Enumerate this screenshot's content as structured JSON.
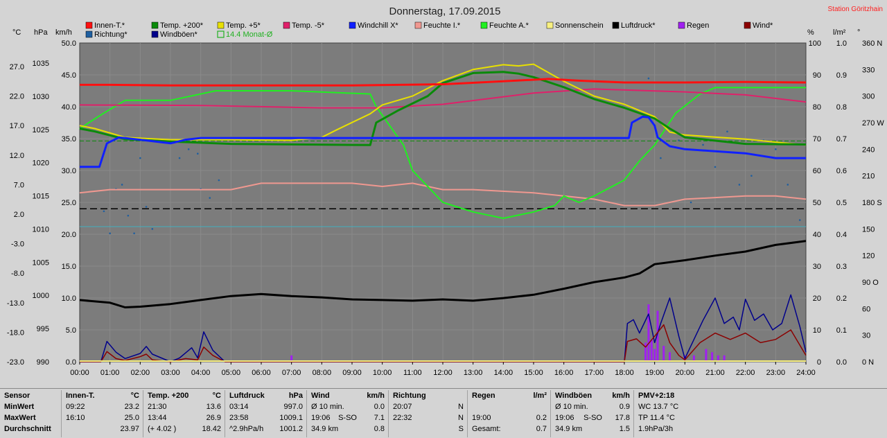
{
  "chart_data": {
    "type": "line",
    "title": "Donnerstag, 17.09.2015",
    "station": "Station Göritzhain",
    "axis_units": {
      "temp": "°C",
      "pressure": "hPa",
      "wind": "km/h",
      "humidity": "%",
      "rain": "l/m²",
      "direction": "°"
    },
    "x_ticks": [
      "00:00",
      "01:00",
      "02:00",
      "03:00",
      "04:00",
      "05:00",
      "06:00",
      "07:00",
      "08:00",
      "09:00",
      "10:00",
      "11:00",
      "12:00",
      "13:00",
      "14:00",
      "15:00",
      "16:00",
      "17:00",
      "18:00",
      "19:00",
      "20:00",
      "21:00",
      "22:00",
      "23:00",
      "24:00"
    ],
    "left_axes": {
      "temp": [
        "27.0",
        "22.0",
        "17.0",
        "12.0",
        "7.0",
        "2.0",
        "-3.0",
        "-8.0",
        "-13.0",
        "-18.0",
        "-23.0"
      ],
      "pressure": [
        "1035",
        "1030",
        "1025",
        "1020",
        "1015",
        "1010",
        "1005",
        "1000",
        "995",
        "990"
      ],
      "wind": [
        "50.0",
        "45.0",
        "40.0",
        "35.0",
        "30.0",
        "25.0",
        "20.0",
        "15.0",
        "10.0",
        "5.0",
        "0.0"
      ]
    },
    "right_axes": {
      "humidity": [
        "100",
        "90",
        "80",
        "70",
        "60",
        "50",
        "40",
        "30",
        "20",
        "10",
        "0"
      ],
      "rain": [
        "1.0",
        "0.9",
        "0.8",
        "0.7",
        "0.6",
        "0.5",
        "0.4",
        "0.3",
        "0.2",
        "0.1",
        "0.0"
      ],
      "direction": [
        "360 N",
        "330",
        "300",
        "270 W",
        "240",
        "210",
        "180 S",
        "150",
        "120",
        "90 O",
        "60",
        "30",
        "0 N"
      ]
    },
    "legend": [
      {
        "label": "Innen-T.*",
        "color": "#ff1010"
      },
      {
        "label": "Temp. +200*",
        "color": "#0a8a0a"
      },
      {
        "label": "Temp. +5*",
        "color": "#e8e000"
      },
      {
        "label": "Temp. -5*",
        "color": "#e0206a"
      },
      {
        "label": "Windchill X*",
        "color": "#1020ff"
      },
      {
        "label": "Feuchte I.*",
        "color": "#f09890"
      },
      {
        "label": "Feuchte A.*",
        "color": "#20f020"
      },
      {
        "label": "Sonnenschein",
        "color": "#f8f080"
      },
      {
        "label": "Luftdruck*",
        "color": "#000000"
      },
      {
        "label": "Regen",
        "color": "#a020f0"
      },
      {
        "label": "Wind*",
        "color": "#8b0000"
      },
      {
        "label": "Richtung*",
        "color": "#1f5fa0"
      },
      {
        "label": "Windböen*",
        "color": "#00008b"
      },
      {
        "label": "14.4 Monat-Ø",
        "color": "#20b020"
      }
    ],
    "series": [
      {
        "name": "Innen-T.",
        "unit": "°C",
        "x": [
          0,
          1,
          3,
          5,
          9,
          12,
          14,
          15.5,
          16.5,
          18,
          20,
          22,
          24
        ],
        "y": [
          23.9,
          23.9,
          23.8,
          23.8,
          23.8,
          24.0,
          24.5,
          24.9,
          24.6,
          24.3,
          24.3,
          24.4,
          24.3
        ]
      },
      {
        "name": "Temp. +200",
        "unit": "°C",
        "x": [
          0,
          0.5,
          1.5,
          3,
          5,
          9.6,
          9.8,
          10.5,
          11.5,
          12,
          13,
          14,
          14.5,
          15,
          16,
          17,
          18,
          19,
          19.5,
          20,
          22,
          24
        ],
        "y": [
          16.5,
          16.0,
          14.7,
          14.3,
          13.9,
          13.7,
          17.5,
          19.5,
          22.0,
          24.2,
          25.9,
          26.1,
          25.8,
          25.2,
          23.5,
          21.5,
          20.0,
          18.2,
          16.5,
          15.0,
          13.9,
          13.8
        ]
      },
      {
        "name": "Temp. +5",
        "unit": "°C",
        "x": [
          0,
          0.5,
          1.5,
          3,
          5,
          7,
          8,
          8.5,
          9.6,
          10,
          11,
          12,
          13,
          14,
          14.5,
          15,
          16,
          17,
          18,
          19,
          19.5,
          20,
          22,
          24
        ],
        "y": [
          17.0,
          16.5,
          15.0,
          14.6,
          14.6,
          14.5,
          15.0,
          16.3,
          19.0,
          20.5,
          22.0,
          24.6,
          26.5,
          27.3,
          27.1,
          27.4,
          24.5,
          22.0,
          20.6,
          18.5,
          15.9,
          15.4,
          14.7,
          13.7
        ]
      },
      {
        "name": "Temp. -5",
        "unit": "°C",
        "x": [
          0,
          4,
          8,
          10,
          12,
          15,
          17,
          20,
          22,
          24
        ],
        "y": [
          20.5,
          20.4,
          20.0,
          20.0,
          20.6,
          22.5,
          23.2,
          22.7,
          22.2,
          21.0
        ]
      },
      {
        "name": "Windchill X",
        "unit": "°C",
        "x": [
          0,
          0.65,
          0.9,
          1.3,
          2,
          3,
          3.5,
          4,
          5,
          9,
          13,
          17,
          18.15,
          18.25,
          18.6,
          18.8,
          19,
          19.1,
          19.5,
          20,
          22,
          23,
          24
        ],
        "y": [
          10.0,
          10.0,
          14.0,
          15.0,
          14.6,
          14.0,
          14.6,
          14.9,
          14.9,
          14.9,
          14.9,
          14.9,
          14.9,
          17.5,
          18.5,
          18.4,
          17.0,
          15.0,
          13.5,
          13.0,
          12.3,
          11.5,
          11.5
        ]
      },
      {
        "name": "Feuchte I.",
        "unit": "%",
        "x": [
          0,
          1,
          2,
          5,
          6,
          9,
          10,
          11,
          11.5,
          12,
          13,
          15,
          16,
          17,
          18,
          19,
          20,
          22,
          23,
          24
        ],
        "y": [
          53,
          54,
          54,
          54,
          56,
          56,
          55,
          56,
          55,
          54,
          54,
          53,
          52,
          51,
          49,
          49,
          51,
          52,
          52,
          51
        ]
      },
      {
        "name": "Feuchte A.",
        "unit": "%",
        "x": [
          0,
          0.3,
          0.8,
          1.5,
          3,
          4.5,
          5,
          7,
          9.6,
          9.8,
          10.7,
          11,
          11.5,
          12,
          13,
          14,
          14.5,
          15,
          15.7,
          16,
          16.5,
          17,
          18,
          18.5,
          19,
          19.7,
          20.5,
          21,
          21.3,
          24
        ],
        "y": [
          73,
          75,
          78,
          82,
          82,
          85,
          85,
          85,
          84,
          80,
          68,
          60,
          55,
          50,
          47,
          45,
          46,
          47,
          49,
          52,
          50,
          52,
          57,
          63,
          68,
          78,
          84,
          86,
          86,
          86
        ]
      },
      {
        "name": "Luftdruck",
        "unit": "hPa",
        "x": [
          0,
          1,
          1.5,
          2,
          3,
          4,
          5,
          6,
          7,
          8,
          9,
          10,
          11,
          12,
          13,
          14,
          15,
          16,
          17,
          18,
          18.5,
          19,
          20,
          21,
          22,
          23,
          24
        ],
        "y": [
          999.3,
          998.9,
          998.2,
          998.3,
          998.7,
          999.3,
          999.9,
          1000.2,
          999.9,
          999.7,
          999.4,
          999.3,
          999.2,
          999.4,
          999.2,
          999.6,
          1000.1,
          1001.0,
          1002.0,
          1002.7,
          1003.3,
          1004.7,
          1005.3,
          1006.0,
          1006.6,
          1007.6,
          1008.2
        ]
      },
      {
        "name": "Windböen",
        "unit": "km/h",
        "x": [
          0,
          0.7,
          0.9,
          1.2,
          1.5,
          2,
          2.2,
          2.4,
          3,
          3.3,
          3.7,
          3.9,
          4.1,
          4.4,
          4.8,
          18,
          18.1,
          18.3,
          18.5,
          18.8,
          19,
          19.2,
          19.5,
          19.8,
          20,
          20.3,
          20.6,
          21,
          21.3,
          21.6,
          21.8,
          22,
          22.3,
          22.6,
          22.9,
          23.2,
          23.5,
          23.8,
          24
        ],
        "y": [
          0,
          0,
          3.2,
          1.5,
          0.5,
          1.3,
          2.4,
          1.2,
          0,
          0.6,
          2.2,
          0.6,
          4.7,
          1.8,
          0,
          0,
          6.0,
          6.6,
          4.5,
          7.5,
          3.0,
          6.0,
          10.0,
          4.0,
          0.5,
          3.5,
          6.5,
          10.0,
          6.0,
          7.0,
          5.0,
          9.8,
          6.5,
          7.5,
          5.0,
          6.0,
          10.5,
          5.5,
          1.5
        ]
      },
      {
        "name": "Wind",
        "unit": "km/h",
        "x": [
          0,
          0.7,
          0.9,
          1.2,
          1.5,
          2,
          2.2,
          2.4,
          3,
          3.5,
          3.9,
          4.1,
          4.4,
          4.8,
          18,
          18.1,
          18.4,
          18.7,
          19,
          19.3,
          19.5,
          19.8,
          20,
          20.5,
          21,
          21.5,
          22,
          22.5,
          23,
          23.5,
          24
        ],
        "y": [
          0,
          0,
          1.6,
          0.5,
          0.2,
          0.8,
          1.2,
          0.3,
          0,
          0.5,
          0.3,
          2.3,
          1.0,
          0,
          0,
          3.2,
          3.6,
          2.3,
          4.0,
          5.8,
          3.0,
          1.0,
          0.3,
          3.0,
          4.5,
          3.5,
          4.5,
          3.0,
          3.5,
          5.0,
          1.0
        ]
      }
    ],
    "reference_lines": [
      {
        "name": "14.4 Monat-Ø",
        "value": 14.4,
        "axis": "temp",
        "style": "dashed",
        "color": "#0a8a0a"
      },
      {
        "name": "",
        "value": 24.0,
        "axis": "wind",
        "style": "dashed",
        "color": "#000000"
      },
      {
        "name": "",
        "value": 21.2,
        "axis": "wind",
        "style": "solid",
        "color": "#40b0c0"
      }
    ],
    "rain_bars": {
      "unit": "l/m²",
      "x": [
        7.0,
        18.7,
        18.8,
        18.9,
        19.0,
        19.1,
        19.3,
        19.5,
        20.0,
        20.3,
        20.7,
        20.9,
        21.1,
        21.3
      ],
      "y": [
        0.02,
        0.06,
        0.18,
        0.07,
        0.04,
        0.16,
        0.05,
        0.03,
        0.02,
        0.02,
        0.04,
        0.03,
        0.02,
        0.02
      ]
    },
    "direction_points": {
      "unit": "°",
      "x": [
        0.8,
        1.0,
        1.2,
        1.4,
        1.6,
        1.8,
        2.0,
        2.2,
        2.4,
        3.0,
        3.3,
        3.6,
        3.9,
        4.0,
        4.3,
        4.6,
        18.8,
        19.2,
        19.8,
        20.2,
        20.6,
        21.0,
        21.4,
        21.8,
        22.2,
        22.6,
        23.0,
        23.4,
        23.8
      ],
      "y": [
        170,
        145,
        195,
        200,
        165,
        145,
        230,
        175,
        150,
        250,
        230,
        240,
        235,
        195,
        185,
        205,
        320,
        230,
        250,
        180,
        245,
        220,
        260,
        200,
        210,
        250,
        240,
        200,
        160
      ]
    }
  },
  "table": {
    "columns": [
      {
        "rows": [
          [
            "Sensor",
            "",
            ""
          ],
          [
            "MinWert",
            "",
            ""
          ],
          [
            "MaxWert",
            "",
            ""
          ],
          [
            "Durchschnitt",
            "",
            ""
          ]
        ]
      },
      {
        "rows": [
          [
            "Innen-T.",
            "",
            "°C"
          ],
          [
            "09:22",
            "",
            "23.2"
          ],
          [
            "16:10",
            "",
            "25.0"
          ],
          [
            "",
            "",
            "23.97"
          ]
        ]
      },
      {
        "rows": [
          [
            "Temp. +200",
            "",
            "°C"
          ],
          [
            "21:30",
            "",
            "13.6"
          ],
          [
            "13:44",
            "",
            "26.9"
          ],
          [
            "(+ 4.02 )",
            "",
            "18.42"
          ]
        ]
      },
      {
        "rows": [
          [
            "Luftdruck",
            "",
            "hPa"
          ],
          [
            "03:14",
            "",
            "997.0"
          ],
          [
            "23:58",
            "",
            "1009.1"
          ],
          [
            "^2.9hPa/h",
            "",
            "1001.2"
          ]
        ]
      },
      {
        "rows": [
          [
            "Wind",
            "",
            "km/h"
          ],
          [
            "Ø 10 min.",
            "",
            "0.0"
          ],
          [
            "19:06",
            "S-SO",
            "7.1"
          ],
          [
            "34.9 km",
            "",
            "0.8"
          ]
        ]
      },
      {
        "rows": [
          [
            "Richtung",
            "",
            ""
          ],
          [
            "20:07",
            "",
            "N"
          ],
          [
            "22:32",
            "",
            "N"
          ],
          [
            "",
            "",
            "S"
          ]
        ]
      },
      {
        "rows": [
          [
            "Regen",
            "",
            "l/m²"
          ],
          [
            "",
            "",
            ""
          ],
          [
            "19:00",
            "",
            "0.2"
          ],
          [
            "Gesamt:",
            "",
            "0.7"
          ]
        ]
      },
      {
        "rows": [
          [
            "Windböen",
            "",
            "km/h"
          ],
          [
            "Ø 10 min.",
            "",
            "0.9"
          ],
          [
            "19:06",
            "S-SO",
            "17.8"
          ],
          [
            "34.9 km",
            "",
            "1.5"
          ]
        ]
      },
      {
        "rows": [
          [
            "PMV+2:18",
            "",
            ""
          ],
          [
            "WC 13.7 °C",
            "",
            ""
          ],
          [
            "TP 11.4 °C",
            "",
            ""
          ],
          [
            "1.9hPa/3h",
            "",
            ""
          ]
        ]
      }
    ]
  }
}
